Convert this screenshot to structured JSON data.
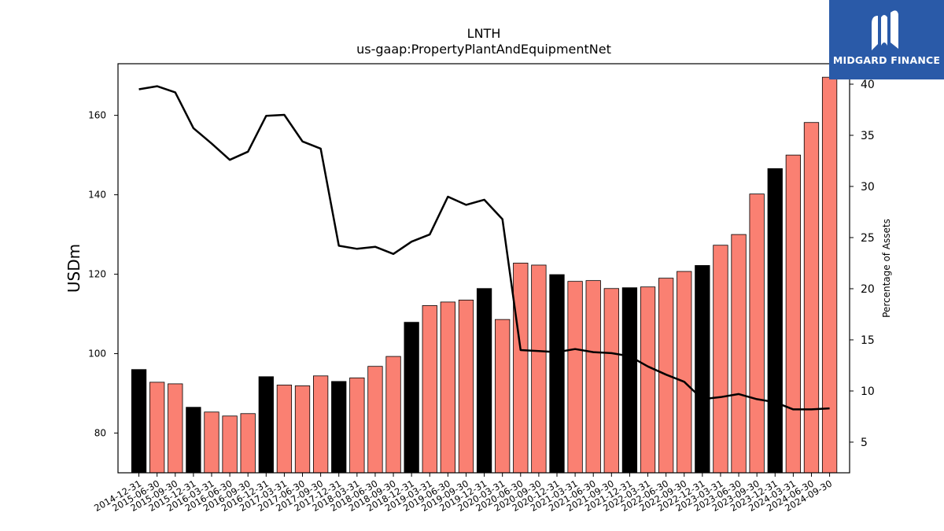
{
  "brand": {
    "name": "MIDGARD FINANCE",
    "logo_icon": "midgard-m-icon",
    "bg_color": "#2a5aa8"
  },
  "chart_data": {
    "type": "bar",
    "title": "LNTH",
    "subtitle": "us-gaap:PropertyPlantAndEquipmentNet",
    "ylabel": "USDm",
    "y2label": "Percentage of Assets",
    "ylim": [
      70,
      173
    ],
    "y2lim": [
      2,
      42
    ],
    "yticks": [
      80,
      100,
      120,
      140,
      160
    ],
    "y2ticks": [
      5,
      10,
      15,
      20,
      25,
      30,
      35,
      40
    ],
    "categories": [
      "2014-12-31",
      "2015-06-30",
      "2015-09-30",
      "2015-12-31",
      "2016-03-31",
      "2016-06-30",
      "2016-09-30",
      "2016-12-31",
      "2017-03-31",
      "2017-06-30",
      "2017-09-30",
      "2017-12-31",
      "2018-03-31",
      "2018-06-30",
      "2018-09-30",
      "2018-12-31",
      "2019-03-31",
      "2019-06-30",
      "2019-09-30",
      "2019-12-31",
      "2020-03-31",
      "2020-06-30",
      "2020-09-30",
      "2020-12-31",
      "2021-03-31",
      "2021-06-30",
      "2021-09-30",
      "2021-12-31",
      "2022-03-31",
      "2022-06-30",
      "2022-09-30",
      "2022-12-31",
      "2023-03-31",
      "2023-06-30",
      "2023-09-30",
      "2023-12-31",
      "2024-03-31",
      "2024-06-30",
      "2024-09-30"
    ],
    "series": [
      {
        "kind": "bar",
        "values": [
          96.0,
          92.8,
          92.4,
          86.5,
          85.3,
          84.3,
          84.9,
          94.2,
          92.1,
          91.9,
          94.4,
          93.0,
          93.9,
          96.8,
          99.3,
          107.9,
          112.1,
          113.0,
          113.5,
          116.4,
          108.6,
          122.8,
          122.3,
          119.9,
          118.2,
          118.4,
          116.4,
          116.6,
          116.8,
          119.0,
          120.7,
          122.2,
          127.3,
          130.0,
          140.2,
          146.6,
          150.0,
          158.2,
          169.6
        ]
      },
      {
        "kind": "line",
        "axis": "right",
        "values": [
          39.5,
          39.8,
          39.2,
          35.7,
          34.2,
          32.6,
          33.4,
          36.9,
          37.0,
          34.4,
          33.7,
          24.2,
          23.9,
          24.1,
          23.4,
          24.6,
          25.3,
          29.0,
          28.2,
          28.7,
          26.8,
          14.0,
          13.9,
          13.8,
          14.1,
          13.8,
          13.7,
          13.4,
          12.4,
          11.6,
          10.9,
          9.2,
          9.4,
          9.7,
          9.2,
          8.9,
          8.2,
          8.2,
          8.3
        ]
      }
    ],
    "bar_colors": {
      "year_end": "#000000",
      "quarter": "#fa8072"
    },
    "line_color": "#000000",
    "grid": false,
    "legend": "none"
  }
}
